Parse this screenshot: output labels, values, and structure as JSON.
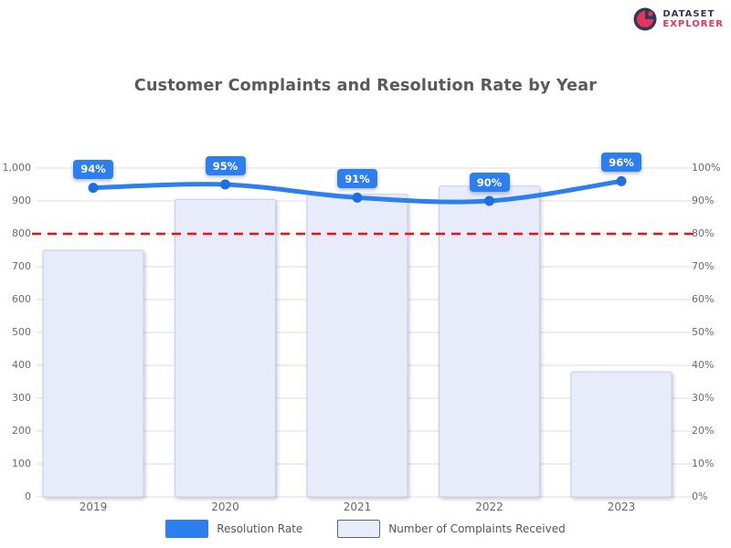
{
  "logo": {
    "line1": "DATASET",
    "line2": "EXPLORER",
    "navy": "#2e3a59",
    "red": "#e8335a"
  },
  "chart_data": {
    "type": "bar+line combo",
    "title": "Customer Complaints and Resolution Rate by Year",
    "categories": [
      "2019",
      "2020",
      "2021",
      "2022",
      "2023"
    ],
    "series": [
      {
        "name": "Number of Complaints Received",
        "type": "bar",
        "axis": "left",
        "values": [
          750,
          905,
          920,
          945,
          380
        ],
        "fill": "#E8ECFA",
        "border": "#C8CEE4"
      },
      {
        "name": "Resolution Rate",
        "type": "line",
        "axis": "right",
        "values": [
          94,
          95,
          91,
          90,
          96
        ],
        "point_labels": [
          "94%",
          "95%",
          "91%",
          "90%",
          "96%"
        ],
        "color": "#2D7FF0"
      }
    ],
    "target_line": {
      "axis": "right",
      "value": 80,
      "color": "#F01010",
      "style": "dashed"
    },
    "left_axis": {
      "min": 0,
      "max": 1000,
      "step": 100,
      "tick_labels": [
        "1,000",
        "900",
        "800",
        "700",
        "600",
        "500",
        "400",
        "300",
        "200",
        "100",
        "0"
      ]
    },
    "right_axis": {
      "min": 0,
      "max": 100,
      "step": 10,
      "tick_labels": [
        "100%",
        "90%",
        "80%",
        "70%",
        "60%",
        "50%",
        "40%",
        "30%",
        "20%",
        "10%",
        "0%"
      ]
    },
    "grid": true,
    "gridline_color": "#dcdcdc",
    "legend_position": "bottom"
  },
  "legend": {
    "items": [
      {
        "label": "Resolution Rate"
      },
      {
        "label": "Number of Complaints Received"
      }
    ]
  }
}
